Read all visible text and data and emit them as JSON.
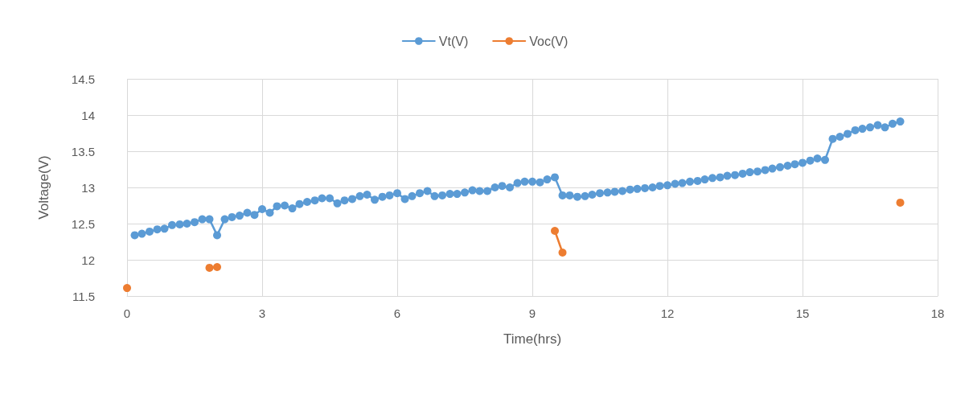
{
  "chart_data": {
    "type": "line",
    "xlabel": "Time(hrs)",
    "ylabel": "Voltage(V)",
    "xlim": [
      0,
      18
    ],
    "xticks": [
      0,
      3,
      6,
      9,
      12,
      15,
      18
    ],
    "ylim": [
      11.5,
      14.5
    ],
    "yticks": [
      11.5,
      12,
      12.5,
      13,
      13.5,
      14,
      14.5
    ],
    "grid": true,
    "legend": "top",
    "marker": "circle",
    "line_style": "solid",
    "series": [
      {
        "name": "Vt(V)",
        "color": "#5b9bd5",
        "x": [
          0.17,
          0.33,
          0.5,
          0.67,
          0.83,
          1.0,
          1.17,
          1.33,
          1.5,
          1.67,
          1.83,
          2.0,
          2.17,
          2.33,
          2.5,
          2.67,
          2.83,
          3.0,
          3.17,
          3.33,
          3.5,
          3.67,
          3.83,
          4.0,
          4.17,
          4.33,
          4.5,
          4.67,
          4.83,
          5.0,
          5.17,
          5.33,
          5.5,
          5.67,
          5.83,
          6.0,
          6.17,
          6.33,
          6.5,
          6.67,
          6.83,
          7.0,
          7.17,
          7.33,
          7.5,
          7.67,
          7.83,
          8.0,
          8.17,
          8.33,
          8.5,
          8.67,
          8.83,
          9.0,
          9.17,
          9.33,
          9.5,
          9.67,
          9.83,
          10.0,
          10.17,
          10.33,
          10.5,
          10.67,
          10.83,
          11.0,
          11.17,
          11.33,
          11.5,
          11.67,
          11.83,
          12.0,
          12.17,
          12.33,
          12.5,
          12.67,
          12.83,
          13.0,
          13.17,
          13.33,
          13.5,
          13.67,
          13.83,
          14.0,
          14.17,
          14.33,
          14.5,
          14.67,
          14.83,
          15.0,
          15.17,
          15.33,
          15.5,
          15.67,
          15.83,
          16.0,
          16.17,
          16.33,
          16.5,
          16.67,
          16.83,
          17.0,
          17.17
        ],
        "values": [
          12.34,
          12.36,
          12.39,
          12.42,
          12.43,
          12.48,
          12.49,
          12.5,
          12.52,
          12.56,
          12.56,
          12.34,
          12.56,
          12.59,
          12.61,
          12.65,
          12.62,
          12.7,
          12.65,
          12.74,
          12.75,
          12.71,
          12.77,
          12.8,
          12.82,
          12.85,
          12.85,
          12.78,
          12.82,
          12.84,
          12.88,
          12.9,
          12.83,
          12.87,
          12.89,
          12.92,
          12.84,
          12.88,
          12.92,
          12.95,
          12.88,
          12.89,
          12.91,
          12.91,
          12.93,
          12.96,
          12.95,
          12.95,
          13.0,
          13.02,
          13.0,
          13.06,
          13.08,
          13.08,
          13.07,
          13.11,
          13.14,
          12.89,
          12.89,
          12.87,
          12.88,
          12.9,
          12.92,
          12.93,
          12.94,
          12.95,
          12.97,
          12.98,
          12.99,
          13.0,
          13.02,
          13.03,
          13.05,
          13.06,
          13.08,
          13.09,
          13.11,
          13.13,
          13.14,
          13.16,
          13.17,
          13.19,
          13.21,
          13.22,
          13.24,
          13.26,
          13.28,
          13.3,
          13.32,
          13.34,
          13.37,
          13.4,
          13.38,
          13.67,
          13.7,
          13.74,
          13.79,
          13.81,
          13.83,
          13.86,
          13.83,
          13.88,
          13.91
        ]
      },
      {
        "name": "Voc(V)",
        "color": "#ed7d31",
        "x": [
          0,
          1,
          1.83,
          2.0,
          5,
          9.5,
          9.67,
          13,
          17.17
        ],
        "values": [
          11.61,
          null,
          11.89,
          11.9,
          null,
          12.4,
          12.1,
          null,
          12.79
        ]
      }
    ]
  }
}
